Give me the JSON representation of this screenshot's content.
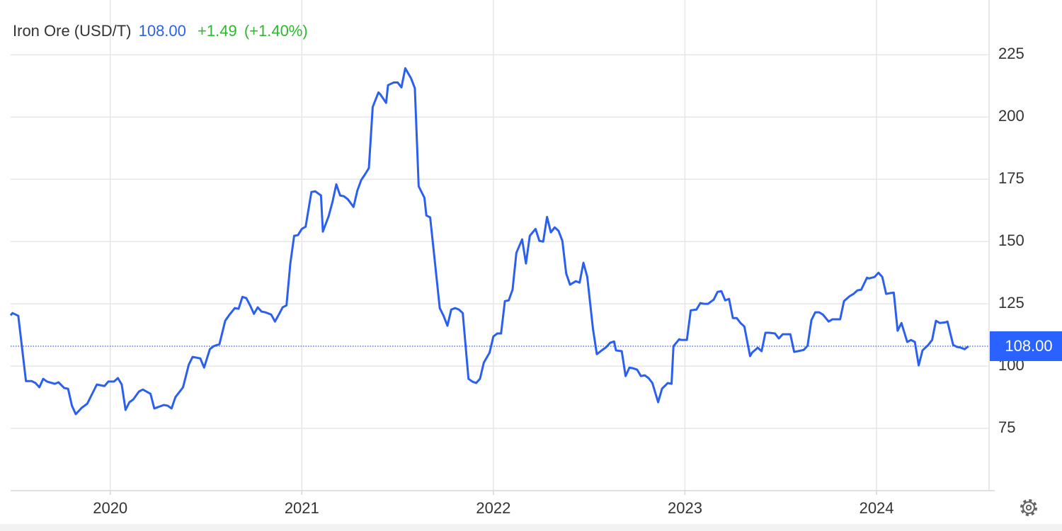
{
  "chart_data": {
    "type": "line",
    "title": "Iron Ore (USD/T)",
    "price": "108.00",
    "change": "+1.49",
    "change_percent": "(+1.40%)",
    "color": "#2b5ff0",
    "price_color": "#2b62e8",
    "change_color": "#2eb82e",
    "xlim": [
      2019.48,
      2024.58
    ],
    "xticks": [
      2020,
      2021,
      2022,
      2023,
      2024
    ],
    "ylim": [
      50,
      247
    ],
    "yticks": [
      75,
      100,
      125,
      150,
      175,
      200,
      225
    ],
    "grid": true,
    "x": [
      2019.48,
      2019.49,
      2019.52,
      2019.56,
      2019.59,
      2019.61,
      2019.63,
      2019.65,
      2019.67,
      2019.71,
      2019.73,
      2019.76,
      2019.78,
      2019.8,
      2019.82,
      2019.85,
      2019.88,
      2019.93,
      2019.97,
      2019.99,
      2020.02,
      2020.04,
      2020.06,
      2020.08,
      2020.1,
      2020.12,
      2020.15,
      2020.17,
      2020.21,
      2020.23,
      2020.28,
      2020.3,
      2020.32,
      2020.34,
      2020.38,
      2020.41,
      2020.43,
      2020.47,
      2020.49,
      2020.52,
      2020.54,
      2020.57,
      2020.6,
      2020.62,
      2020.65,
      2020.67,
      2020.69,
      2020.71,
      2020.73,
      2020.75,
      2020.77,
      2020.79,
      2020.81,
      2020.84,
      2020.86,
      2020.88,
      2020.9,
      2020.92,
      2020.94,
      2020.96,
      2020.98,
      2021.0,
      2021.02,
      2021.05,
      2021.07,
      2021.1,
      2021.11,
      2021.14,
      2021.16,
      2021.18,
      2021.2,
      2021.22,
      2021.24,
      2021.27,
      2021.29,
      2021.31,
      2021.33,
      2021.35,
      2021.37,
      2021.4,
      2021.41,
      2021.44,
      2021.45,
      2021.48,
      2021.5,
      2021.52,
      2021.54,
      2021.57,
      2021.59,
      2021.61,
      2021.64,
      2021.65,
      2021.67,
      2021.69,
      2021.72,
      2021.74,
      2021.76,
      2021.78,
      2021.8,
      2021.82,
      2021.84,
      2021.87,
      2021.89,
      2021.91,
      2021.93,
      2021.95,
      2021.98,
      2022.0,
      2022.02,
      2022.04,
      2022.06,
      2022.08,
      2022.1,
      2022.12,
      2022.15,
      2022.17,
      2022.19,
      2022.22,
      2022.24,
      2022.26,
      2022.28,
      2022.3,
      2022.32,
      2022.34,
      2022.36,
      2022.38,
      2022.4,
      2022.43,
      2022.45,
      2022.47,
      2022.49,
      2022.52,
      2022.54,
      2022.56,
      2022.59,
      2022.61,
      2022.63,
      2022.64,
      2022.67,
      2022.69,
      2022.71,
      2022.73,
      2022.75,
      2022.77,
      2022.79,
      2022.81,
      2022.83,
      2022.86,
      2022.88,
      2022.91,
      2022.93,
      2022.94,
      2022.97,
      2022.98,
      2023.01,
      2023.03,
      2023.06,
      2023.08,
      2023.1,
      2023.12,
      2023.15,
      2023.17,
      2023.19,
      2023.21,
      2023.23,
      2023.25,
      2023.27,
      2023.29,
      2023.31,
      2023.34,
      2023.35,
      2023.38,
      2023.4,
      2023.42,
      2023.44,
      2023.47,
      2023.49,
      2023.51,
      2023.53,
      2023.55,
      2023.57,
      2023.59,
      2023.62,
      2023.64,
      2023.66,
      2023.68,
      2023.7,
      2023.72,
      2023.75,
      2023.77,
      2023.79,
      2023.81,
      2023.83,
      2023.86,
      2023.88,
      2023.9,
      2023.92,
      2023.95,
      2023.96,
      2023.99,
      2024.01,
      2024.03,
      2024.05,
      2024.07,
      2024.09,
      2024.11,
      2024.13,
      2024.16,
      2024.18,
      2024.2,
      2024.22,
      2024.24,
      2024.27,
      2024.29,
      2024.31,
      2024.33,
      2024.36,
      2024.37,
      2024.4,
      2024.42,
      2024.44,
      2024.46,
      2024.48
    ],
    "values": [
      120.4,
      121.3,
      120.2,
      94.0,
      94.0,
      93.2,
      91.5,
      94.9,
      93.8,
      92.9,
      93.5,
      91.2,
      90.9,
      84.1,
      80.7,
      83.2,
      84.9,
      92.6,
      92.0,
      93.8,
      93.8,
      95.2,
      92.6,
      82.4,
      85.5,
      86.6,
      89.8,
      90.6,
      88.9,
      83.0,
      84.4,
      84.1,
      83.0,
      87.5,
      91.5,
      100.6,
      103.7,
      103.1,
      99.4,
      106.8,
      108.0,
      108.8,
      118.2,
      120.4,
      123.3,
      123.0,
      127.8,
      127.3,
      124.4,
      121.0,
      123.6,
      121.9,
      121.6,
      120.7,
      117.9,
      120.7,
      123.6,
      124.4,
      141.2,
      152.3,
      152.6,
      155.1,
      156.0,
      169.9,
      170.2,
      168.5,
      154.0,
      160.2,
      165.9,
      173.0,
      168.5,
      168.2,
      167.0,
      163.9,
      170.5,
      174.7,
      177.0,
      179.5,
      204.0,
      209.9,
      209.1,
      205.7,
      212.8,
      213.9,
      213.9,
      211.9,
      219.6,
      215.6,
      211.6,
      172.2,
      167.6,
      160.5,
      159.7,
      145.2,
      123.3,
      120.2,
      116.2,
      122.7,
      123.3,
      122.7,
      121.3,
      94.9,
      93.8,
      93.2,
      94.9,
      101.4,
      105.4,
      111.9,
      113.1,
      113.1,
      126.1,
      126.4,
      130.7,
      145.5,
      150.9,
      141.2,
      152.3,
      155.1,
      150.3,
      150.0,
      159.9,
      153.7,
      155.7,
      154.3,
      150.3,
      137.2,
      132.7,
      134.1,
      133.5,
      141.5,
      135.8,
      114.8,
      104.8,
      106.0,
      107.7,
      109.4,
      109.9,
      106.3,
      106.0,
      96.0,
      99.4,
      99.1,
      98.6,
      96.0,
      96.3,
      95.2,
      93.2,
      85.5,
      90.9,
      93.2,
      92.9,
      108.0,
      110.8,
      110.5,
      110.5,
      122.4,
      122.7,
      125.3,
      125.0,
      125.0,
      126.7,
      129.8,
      130.1,
      126.4,
      127.0,
      119.3,
      119.3,
      117.3,
      115.9,
      104.0,
      105.4,
      107.4,
      106.0,
      113.4,
      113.4,
      113.1,
      111.1,
      112.8,
      112.8,
      112.8,
      105.7,
      106.0,
      106.5,
      108.2,
      118.5,
      121.6,
      121.6,
      120.7,
      117.9,
      118.8,
      118.8,
      118.8,
      126.1,
      128.1,
      129.0,
      130.4,
      130.7,
      135.5,
      135.2,
      135.8,
      137.5,
      135.8,
      129.0,
      129.3,
      129.5,
      114.2,
      117.3,
      109.7,
      110.5,
      109.7,
      100.3,
      106.3,
      108.5,
      110.5,
      118.2,
      117.3,
      117.6,
      117.9,
      108.5,
      107.7,
      107.4,
      106.8,
      108.0
    ]
  }
}
